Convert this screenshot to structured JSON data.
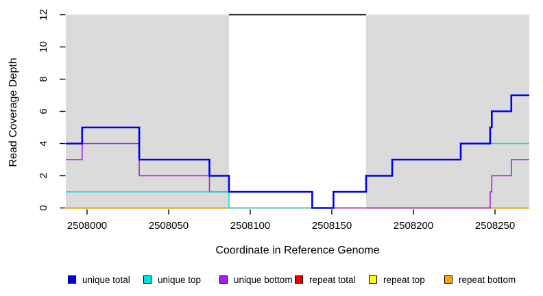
{
  "figure": {
    "xlabel": "Coordinate in Reference Genome",
    "ylabel": "Read Coverage Depth"
  },
  "chart_data": {
    "type": "line",
    "subtype": "step-coverage-plot",
    "title": "",
    "xlabel": "Coordinate in Reference Genome",
    "ylabel": "Read Coverage Depth",
    "xlim": [
      2507987,
      2508271
    ],
    "ylim": [
      0,
      12
    ],
    "x_ticks": [
      "2508000",
      "2508050",
      "2508100",
      "2508150",
      "2508200",
      "2508250"
    ],
    "x_tick_values": [
      2508000,
      2508050,
      2508100,
      2508150,
      2508200,
      2508250
    ],
    "y_ticks": [
      "0",
      "2",
      "4",
      "6",
      "8",
      "10",
      "12"
    ],
    "y_tick_values": [
      0,
      2,
      4,
      6,
      8,
      10,
      12
    ],
    "grid": false,
    "legend_position": "bottom",
    "background_color": "#ffffff",
    "shaded_region_color": "#DBDBDB",
    "background_regions": [
      {
        "name": "unique-region-left",
        "from": 2507987,
        "to": 2508087
      },
      {
        "name": "unique-region-right",
        "from": 2508171,
        "to": 2508271
      }
    ],
    "marker_line": {
      "y": 12,
      "from": 2508087,
      "to": 2508171,
      "color": "#000000"
    },
    "draw_order": [
      "repeat total",
      "repeat top",
      "repeat bottom",
      "unique bottom",
      "unique top",
      "unique total"
    ],
    "series": [
      {
        "name": "unique total",
        "color": "#0000E8",
        "width": 2.6,
        "steps": [
          [
            2507987,
            4
          ],
          [
            2507997,
            5
          ],
          [
            2508032,
            3
          ],
          [
            2508075,
            2
          ],
          [
            2508087,
            1
          ],
          [
            2508138,
            0
          ],
          [
            2508151,
            1
          ],
          [
            2508171,
            2
          ],
          [
            2508187,
            3
          ],
          [
            2508229,
            4
          ],
          [
            2508247,
            5
          ],
          [
            2508248,
            6
          ],
          [
            2508260,
            7
          ],
          [
            2508271,
            7
          ]
        ]
      },
      {
        "name": "unique top",
        "color": "#00E0E0",
        "width": 1.5,
        "steps": [
          [
            2507987,
            1
          ],
          [
            2508087,
            0
          ],
          [
            2508151,
            1
          ],
          [
            2508171,
            2
          ],
          [
            2508187,
            3
          ],
          [
            2508229,
            4
          ],
          [
            2508271,
            4
          ]
        ]
      },
      {
        "name": "unique bottom",
        "color": "#A020F0",
        "width": 1.6,
        "steps": [
          [
            2507987,
            3
          ],
          [
            2507997,
            4
          ],
          [
            2508032,
            2
          ],
          [
            2508075,
            1
          ],
          [
            2508138,
            0
          ],
          [
            2508247,
            1
          ],
          [
            2508248,
            2
          ],
          [
            2508260,
            3
          ],
          [
            2508271,
            3
          ]
        ]
      },
      {
        "name": "repeat total",
        "color": "#E60000",
        "width": 1.5,
        "steps": [
          [
            2507987,
            0
          ],
          [
            2508271,
            0
          ]
        ]
      },
      {
        "name": "repeat top",
        "color": "#FFFF00",
        "width": 1.5,
        "steps": [
          [
            2507987,
            0
          ],
          [
            2508271,
            0
          ]
        ]
      },
      {
        "name": "repeat bottom",
        "color": "#FFA500",
        "width": 2.0,
        "steps": [
          [
            2507987,
            0
          ],
          [
            2508271,
            0
          ]
        ]
      }
    ]
  }
}
